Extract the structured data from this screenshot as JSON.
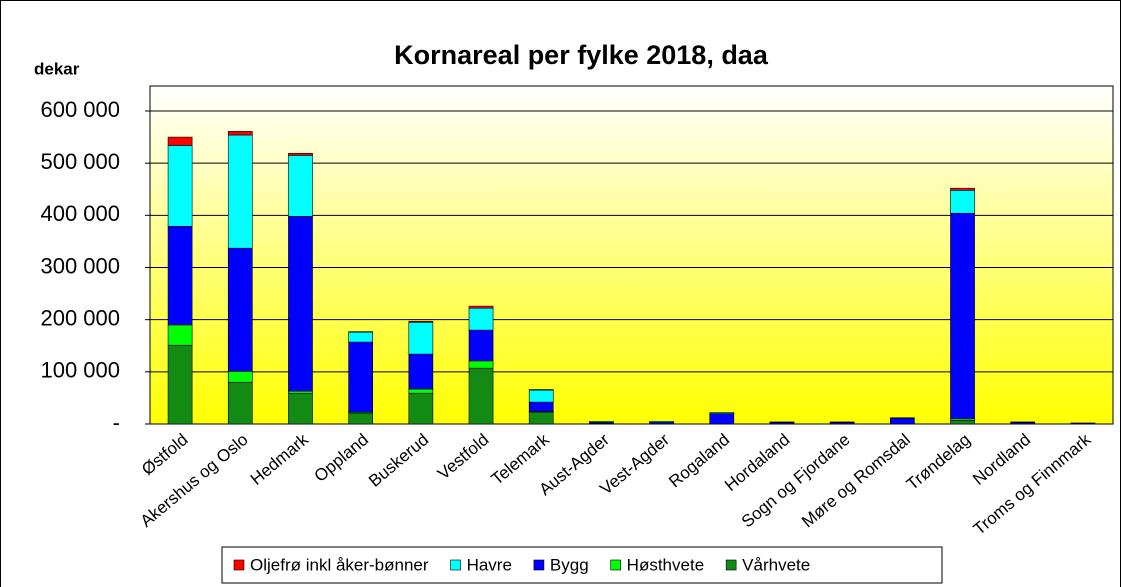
{
  "chart_data": {
    "type": "bar",
    "stacked": true,
    "title": "Kornareal per fylke 2018, daa",
    "y_label": "dekar",
    "categories": [
      "Østfold",
      "Akershus og Oslo",
      "Hedmark",
      "Oppland",
      "Buskerud",
      "Vestfold",
      "Telemark",
      "Aust-Agder",
      "Vest-Agder",
      "Rogaland",
      "Hordaland",
      "Sogn og Fjordane",
      "Møre og Romsdal",
      "Trøndelag",
      "Nordland",
      "Troms og Finnmark"
    ],
    "series": [
      {
        "name": "Vårhvete",
        "color": "#138a13",
        "values": [
          151000,
          80000,
          59000,
          21000,
          59000,
          107000,
          23000,
          1000,
          0,
          0,
          0,
          0,
          0,
          7000,
          0,
          0
        ]
      },
      {
        "name": "Høsthvete",
        "color": "#00ff00",
        "values": [
          39000,
          21000,
          4000,
          2000,
          8000,
          14000,
          1000,
          0,
          0,
          0,
          0,
          0,
          0,
          3000,
          0,
          0
        ]
      },
      {
        "name": "Bygg",
        "color": "#0000ff",
        "values": [
          189000,
          236000,
          335000,
          134000,
          67000,
          59000,
          18000,
          2000,
          3000,
          20000,
          3000,
          3000,
          11000,
          394000,
          3000,
          2000
        ]
      },
      {
        "name": "Havre",
        "color": "#00ffff",
        "values": [
          155000,
          217000,
          117000,
          19000,
          61000,
          42000,
          23000,
          2000,
          2000,
          2000,
          1000,
          1000,
          1000,
          44000,
          1000,
          0
        ]
      },
      {
        "name": "Oljefrø inkl åker-bønner",
        "color": "#ff0000",
        "values": [
          16000,
          7000,
          4000,
          1000,
          2000,
          4000,
          1000,
          0,
          0,
          0,
          0,
          0,
          0,
          4000,
          0,
          0
        ]
      }
    ],
    "ylim": [
      0,
      600000
    ],
    "yticks": [
      {
        "value": 0,
        "label": "-"
      },
      {
        "value": 100000,
        "label": "100 000"
      },
      {
        "value": 200000,
        "label": "200 000"
      },
      {
        "value": 300000,
        "label": "300 000"
      },
      {
        "value": 400000,
        "label": "400 000"
      },
      {
        "value": 500000,
        "label": "500 000"
      },
      {
        "value": 600000,
        "label": "600 000"
      }
    ],
    "grid": true,
    "legend": "bottom"
  }
}
